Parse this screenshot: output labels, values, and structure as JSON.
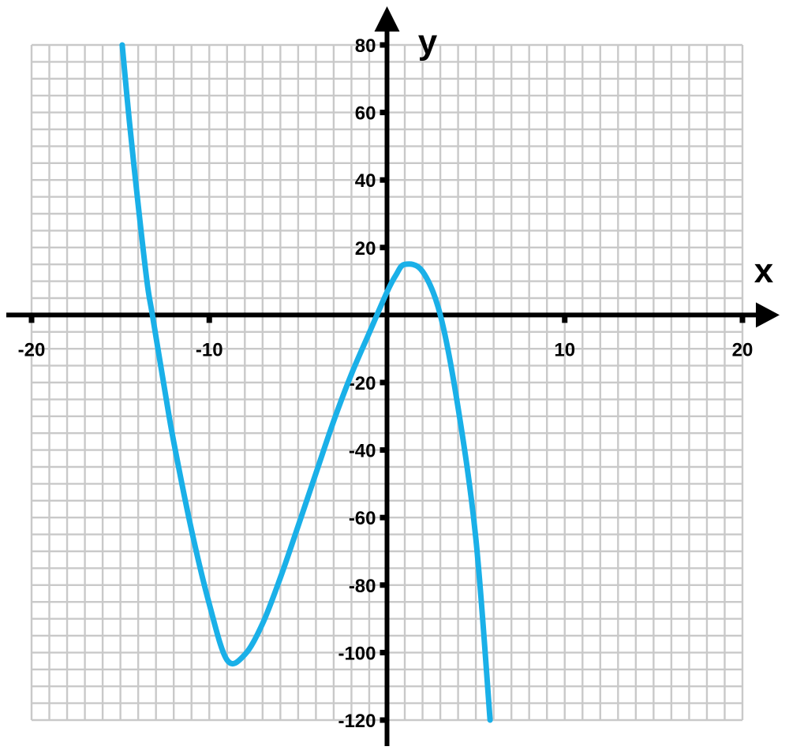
{
  "chart_data": {
    "type": "line",
    "title": "",
    "xlabel": "x",
    "ylabel": "y",
    "xlim": [
      -20,
      20
    ],
    "ylim": [
      -120,
      80
    ],
    "grid": true,
    "grid_step_x": 1,
    "grid_step_y": 5,
    "x_ticks": [
      -20,
      -10,
      10,
      20
    ],
    "x_tick_labels": [
      "-20",
      "-10",
      "10",
      "20"
    ],
    "y_ticks": [
      80,
      60,
      40,
      20,
      -20,
      -40,
      -60,
      -80,
      -100,
      -120
    ],
    "y_tick_labels": [
      "80",
      "60",
      "40",
      "20",
      "-20",
      "-40",
      "-60",
      "-80",
      "-100",
      "-120"
    ],
    "colors": {
      "curve": "#1ab0e8",
      "grid": "#c9c9c9",
      "axis": "#000000"
    },
    "series": [
      {
        "x": [
          -14.9,
          -14.5,
          -14,
          -13.5,
          -13.2,
          -12.5,
          -12,
          -11,
          -10,
          -9,
          -8,
          -7,
          -6,
          -5,
          -4,
          -3,
          -2,
          -1,
          0,
          0.5,
          1,
          2,
          3,
          4,
          5,
          5.8
        ],
        "y": [
          80,
          57.6,
          32.6,
          9.7,
          0,
          -22.4,
          -37.6,
          -63.7,
          -85.6,
          -102.2,
          -100.6,
          -91.4,
          -77.8,
          -62.5,
          -46.9,
          -31.4,
          -17.5,
          -5.3,
          6.8,
          11.8,
          15,
          12.9,
          0,
          -27.5,
          -66.3,
          -120
        ]
      }
    ]
  }
}
